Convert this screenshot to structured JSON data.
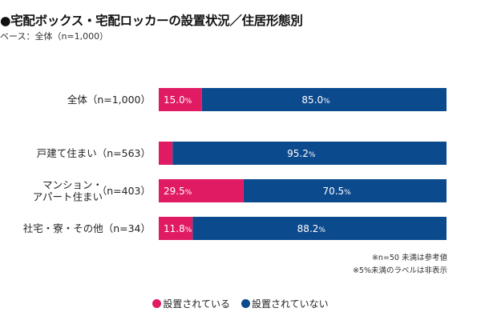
{
  "header": {
    "title": "●宅配ボックス・宅配ロッカーの設置状況／住居形態別",
    "subtitle": "ベース：全体（n=1,000）"
  },
  "notes": [
    "※n=50 未満は参考値",
    "※5%未満のラベルは非表示"
  ],
  "colors": {
    "installed": "#e01b63",
    "not_installed": "#0c4a8e"
  },
  "chart_data": {
    "type": "bar",
    "orientation": "horizontal",
    "stacked": true,
    "percent": true,
    "title": "●宅配ボックス・宅配ロッカーの設置状況／住居形態別",
    "subtitle": "ベース：全体（n=1,000）",
    "categories": [
      "全体（n=1,000）",
      "戸建て住まい（n=563）",
      "マンション・アパート住まい（n=403）",
      "社宅・寮・その他（n=34）"
    ],
    "category_lines": [
      [
        "全体（n=1,000）"
      ],
      [
        "戸建て住まい（n=563）"
      ],
      [
        "マンション・",
        "アパート住まい",
        "（n=403）"
      ],
      [
        "社宅・寮・その他（n=34）"
      ]
    ],
    "series": [
      {
        "name": "設置されている",
        "color": "#e01b63",
        "values": [
          15.0,
          4.8,
          29.5,
          11.8
        ]
      },
      {
        "name": "設置されていない",
        "color": "#0c4a8e",
        "values": [
          85.0,
          95.2,
          70.5,
          88.2
        ]
      }
    ],
    "label_threshold": 5,
    "label_suffix": "%",
    "xlim": [
      0,
      100
    ],
    "legend": "bottom-center",
    "grid": false
  }
}
